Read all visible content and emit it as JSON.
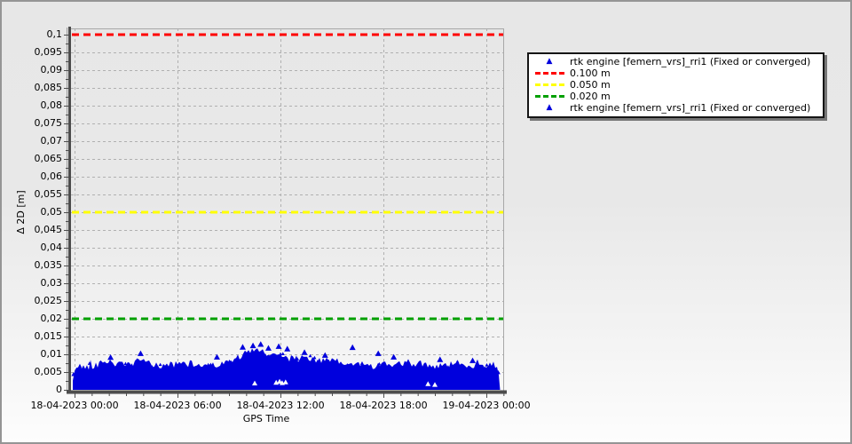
{
  "window": {
    "border_color": "#959595",
    "background_top": "#e7e7e7",
    "background_bottom": "#fdfdfd"
  },
  "chart_data": {
    "type": "scatter",
    "title": "",
    "xlabel": "GPS Time",
    "ylabel": "Δ 2D [m]",
    "grid": {
      "show": true,
      "color": "#b0b0b0",
      "style": "dashed"
    },
    "xlim_hours": [
      0,
      25.05
    ],
    "ylim": [
      0,
      0.1
    ],
    "x_ticks": [
      {
        "hour": 0,
        "label": "18-04-2023 00:00"
      },
      {
        "hour": 6,
        "label": "18-04-2023 06:00"
      },
      {
        "hour": 12,
        "label": "18-04-2023 12:00"
      },
      {
        "hour": 18,
        "label": "18-04-2023 18:00"
      },
      {
        "hour": 24,
        "label": "19-04-2023 00:00"
      }
    ],
    "x_minor_tick_step_hours": 1,
    "y_ticks": [
      {
        "value": 0.1,
        "label": "0,1"
      },
      {
        "value": 0.095,
        "label": "0,095"
      },
      {
        "value": 0.09,
        "label": "0,09"
      },
      {
        "value": 0.085,
        "label": "0,085"
      },
      {
        "value": 0.08,
        "label": "0,08"
      },
      {
        "value": 0.075,
        "label": "0,075"
      },
      {
        "value": 0.07,
        "label": "0,07"
      },
      {
        "value": 0.065,
        "label": "0,065"
      },
      {
        "value": 0.06,
        "label": "0,06"
      },
      {
        "value": 0.055,
        "label": "0,055"
      },
      {
        "value": 0.05,
        "label": "0,05"
      },
      {
        "value": 0.045,
        "label": "0,045"
      },
      {
        "value": 0.04,
        "label": "0,04"
      },
      {
        "value": 0.035,
        "label": "0,035"
      },
      {
        "value": 0.03,
        "label": "0,03"
      },
      {
        "value": 0.025,
        "label": "0,025"
      },
      {
        "value": 0.02,
        "label": "0,02"
      },
      {
        "value": 0.015,
        "label": "0,015"
      },
      {
        "value": 0.01,
        "label": "0,01"
      },
      {
        "value": 0.005,
        "label": "0,005"
      },
      {
        "value": 0,
        "label": "0"
      }
    ],
    "thresholds": [
      {
        "label": "0.100 m",
        "value": 0.1,
        "color": "#ff0000"
      },
      {
        "label": "0.050 m",
        "value": 0.05,
        "color": "#ffff00"
      },
      {
        "label": "0.020 m",
        "value": 0.02,
        "color": "#00a000"
      }
    ],
    "series": [
      {
        "name": "rtk engine [femern_vrs]_rri1 (Fixed or converged)",
        "marker": "triangle",
        "color": "#0000dd",
        "band_lower": 0,
        "envelope_start_hour": 0,
        "envelope_step_hours": 0.5,
        "envelope_end_hour": 24.8,
        "envelope_top": [
          0.007,
          0.0064,
          0.0068,
          0.0074,
          0.0082,
          0.0071,
          0.0069,
          0.0075,
          0.0083,
          0.0071,
          0.0067,
          0.0072,
          0.0069,
          0.0075,
          0.0071,
          0.0068,
          0.0074,
          0.007,
          0.0078,
          0.0092,
          0.0102,
          0.0112,
          0.0105,
          0.0096,
          0.0102,
          0.009,
          0.0083,
          0.0093,
          0.0087,
          0.008,
          0.0084,
          0.0076,
          0.0071,
          0.0074,
          0.007,
          0.0067,
          0.0072,
          0.0069,
          0.0073,
          0.007,
          0.0075,
          0.0071,
          0.0068,
          0.0073,
          0.007,
          0.0074,
          0.0071,
          0.0069,
          0.0073,
          0.0071
        ],
        "outliers": [
          [
            2.1,
            0.0095
          ],
          [
            3.85,
            0.0106
          ],
          [
            8.3,
            0.0096
          ],
          [
            9.8,
            0.0124
          ],
          [
            10.4,
            0.0128
          ],
          [
            10.85,
            0.0132
          ],
          [
            11.3,
            0.0121
          ],
          [
            11.9,
            0.0126
          ],
          [
            12.4,
            0.0119
          ],
          [
            13.4,
            0.0109
          ],
          [
            14.6,
            0.0101
          ],
          [
            16.2,
            0.0123
          ],
          [
            17.7,
            0.0106
          ],
          [
            18.6,
            0.0096
          ],
          [
            21.3,
            0.0089
          ],
          [
            23.2,
            0.0086
          ]
        ],
        "sparse_gaps": [
          [
            10.5,
            0.0026
          ],
          [
            11.75,
            0.0028
          ],
          [
            11.95,
            0.0031
          ],
          [
            12.1,
            0.0027
          ],
          [
            12.3,
            0.0029
          ],
          [
            20.6,
            0.0024
          ],
          [
            21.0,
            0.0022
          ]
        ]
      }
    ],
    "legend": {
      "position": "top-right",
      "entries": [
        {
          "marker": "triangle",
          "color": "#0000dd",
          "label": "rtk engine [femern_vrs]_rri1 (Fixed or converged)"
        },
        {
          "marker": "dashes",
          "color": "#ff0000",
          "label": "0.100 m"
        },
        {
          "marker": "dashes",
          "color": "#ffff00",
          "label": "0.050 m"
        },
        {
          "marker": "dashes",
          "color": "#00a000",
          "label": "0.020 m"
        },
        {
          "marker": "triangle",
          "color": "#0000dd",
          "label": "rtk engine [femern_vrs]_rri1 (Fixed or converged)"
        }
      ]
    }
  }
}
